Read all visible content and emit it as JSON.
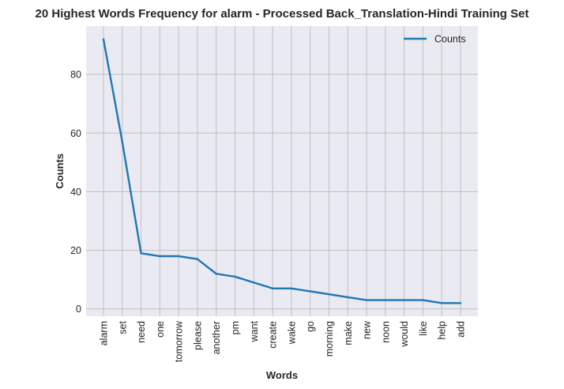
{
  "chart_data": {
    "type": "line",
    "title": "20 Highest Words Frequency for alarm - Processed Back_Translation-Hindi Training Set",
    "xlabel": "Words",
    "ylabel": "Counts",
    "categories": [
      "alarm",
      "set",
      "need",
      "one",
      "tomorrow",
      "please",
      "another",
      "pm",
      "want",
      "create",
      "wake",
      "go",
      "morning",
      "make",
      "new",
      "noon",
      "would",
      "like",
      "help",
      "add"
    ],
    "series": [
      {
        "name": "Counts",
        "values": [
          92,
          57,
          19,
          18,
          18,
          17,
          12,
          11,
          9,
          7,
          7,
          6,
          5,
          4,
          3,
          3,
          3,
          3,
          2,
          2
        ]
      }
    ],
    "ylim": [
      -2.5,
      96.5
    ],
    "yticks": [
      0,
      20,
      40,
      60,
      80
    ],
    "grid": true,
    "legend_position": "top-right",
    "colors": {
      "line": "#1f77b4",
      "plot_bg": "#eaeaf2",
      "grid": "#c0c0c0"
    }
  }
}
